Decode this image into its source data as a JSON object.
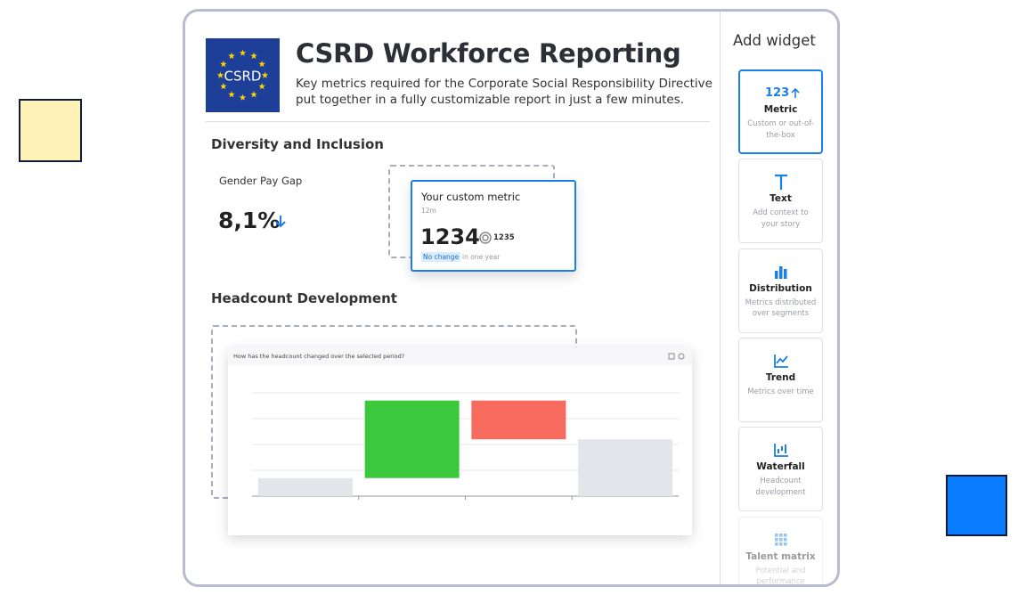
{
  "header": {
    "logo_text": "CSRD",
    "title": "CSRD Workforce Reporting",
    "subtitle": "Key metrics required for the Corporate Social Responsibility Directive put together in a fully customizable report in just a few minutes."
  },
  "diversity": {
    "title": "Diversity and Inclusion",
    "gender_pay_gap": {
      "label": "Gender Pay Gap",
      "value": "8,1%"
    },
    "custom_metric": {
      "title": "Your custom metric",
      "period": "12m",
      "value": 1234,
      "target": 1235,
      "badge": "No change",
      "note": "in one year"
    }
  },
  "headcount": {
    "title": "Headcount Development"
  },
  "chart_data": {
    "type": "waterfall",
    "title": "How has the headcount changed over the selected period?",
    "categories": [
      null,
      null,
      null,
      null
    ],
    "values": [
      0.7,
      3.0,
      -1.5,
      2.2
    ],
    "measure": [
      "absolute",
      "relative",
      "relative",
      "total"
    ],
    "colors": [
      "#e4e5ea",
      "#3cc83c",
      "#f76b5e",
      "#e4e5ea"
    ],
    "ylim": [
      0,
      4
    ],
    "yticks": [
      0,
      1,
      2,
      3,
      4
    ],
    "grid": true
  },
  "sidebar": {
    "title": "Add widget",
    "widgets": [
      {
        "label": "Metric",
        "description": "Custom or out-of-the-box",
        "icon_text": "123"
      },
      {
        "label": "Text",
        "description": "Add context to your story"
      },
      {
        "label": "Distribution",
        "description": "Metrics distributed over segments"
      },
      {
        "label": "Trend",
        "description": "Metrics over time"
      },
      {
        "label": "Waterfall",
        "description": "Headcount development"
      },
      {
        "label": "Talent matrix",
        "description": "Potential and performance"
      }
    ]
  }
}
